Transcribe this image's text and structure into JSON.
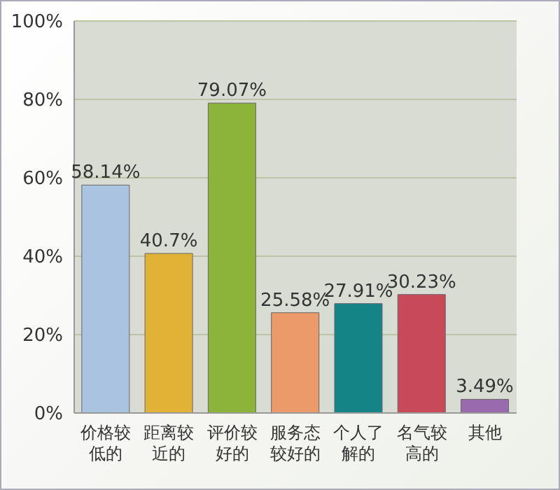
{
  "chart_data": {
    "type": "bar",
    "categories": [
      "价格较低的",
      "距离较近的",
      "评价较好的",
      "服务态较好的",
      "个人了解的",
      "名气较高的",
      "其他"
    ],
    "values": [
      58.14,
      40.7,
      79.07,
      25.58,
      27.91,
      30.23,
      3.49
    ],
    "value_labels": [
      "58.14%",
      "40.7%",
      "79.07%",
      "25.58%",
      "27.91%",
      "30.23%",
      "3.49%"
    ],
    "colors": [
      "#a9c3e0",
      "#e2b236",
      "#8cb43a",
      "#ec9a6a",
      "#148486",
      "#c84a58",
      "#9a6aae"
    ],
    "ylim": [
      0,
      100
    ],
    "yticks": [
      {
        "value": 0,
        "label": "0%"
      },
      {
        "value": 20,
        "label": "20%"
      },
      {
        "value": 40,
        "label": "40%"
      },
      {
        "value": 60,
        "label": "60%"
      },
      {
        "value": 80,
        "label": "80%"
      },
      {
        "value": 100,
        "label": "100%"
      }
    ],
    "grid": "y"
  }
}
